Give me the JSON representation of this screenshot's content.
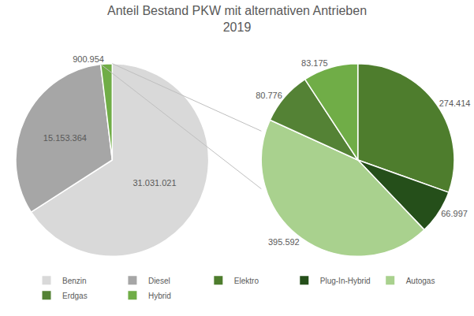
{
  "chart_data": [
    {
      "type": "pie",
      "title": "Anteil Bestand PKW mit alternativen Antrieben\n2019",
      "categories": [
        "Benzin",
        "Diesel",
        null
      ],
      "values": [
        31031021,
        15153364,
        900954
      ],
      "value_labels": [
        "31.031.021",
        "15.153.364",
        "900.954"
      ],
      "colors": [
        "#d9d9d9",
        "#a6a6a6",
        "#70ad47"
      ],
      "data_labels": true,
      "legend": "bottom"
    },
    {
      "type": "pie",
      "categories": [
        "Elektro",
        "Plug-In-Hybrid",
        "Autogas",
        "Erdgas",
        "Hybrid"
      ],
      "values": [
        274414,
        66997,
        395592,
        80776,
        83175
      ],
      "value_labels": [
        "274.414",
        "66.997",
        "395.592",
        "80.776",
        "83.175"
      ],
      "colors": [
        "#4e7d2d",
        "#254f1a",
        "#a9d18e",
        "#548235",
        "#70ad47"
      ],
      "data_labels": true
    }
  ]
}
